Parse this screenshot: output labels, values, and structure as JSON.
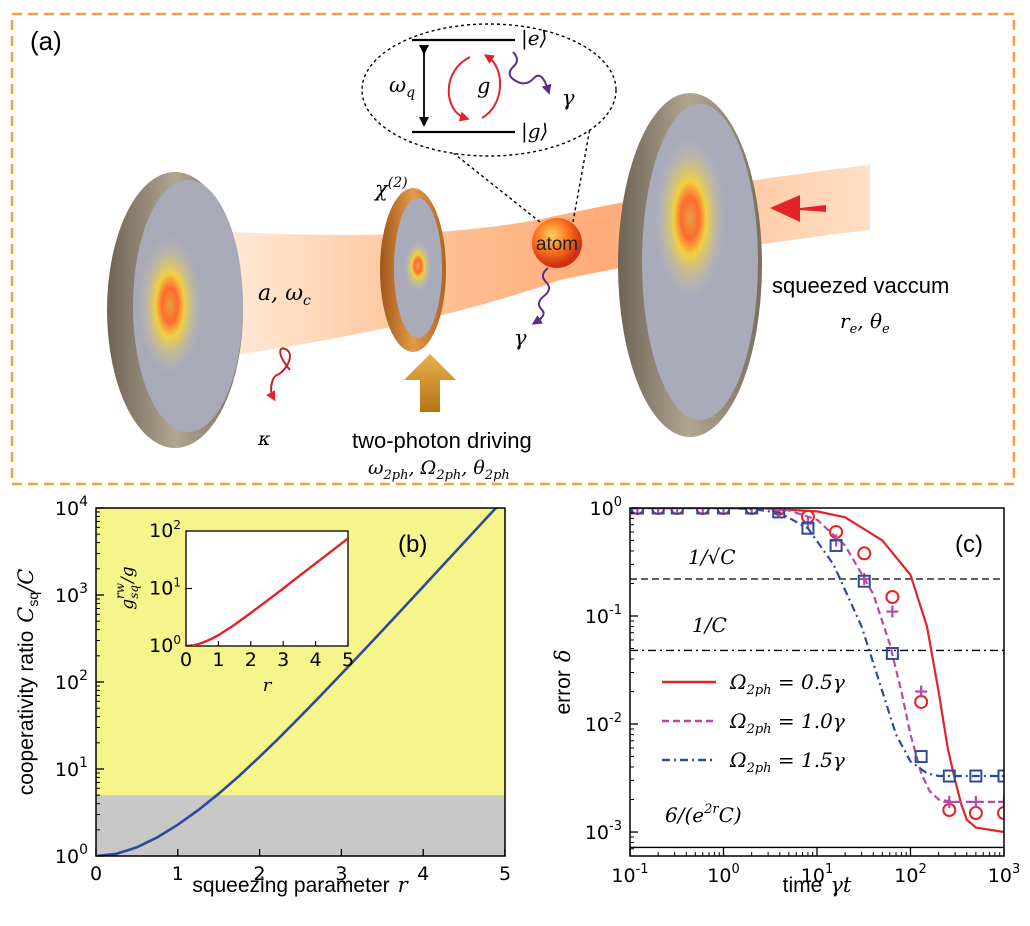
{
  "panel_a": {
    "label": "(a)",
    "chi_label": "χ",
    "chi_sup": "(2)",
    "level_e": "|e⟩",
    "level_g": "|g⟩",
    "omega_q": "ω",
    "omega_q_sub": "q",
    "coupling_g": "g",
    "gamma_top": "γ",
    "gamma_bottom": "γ",
    "atom": "atom",
    "cavity_mode": "a, ω",
    "cavity_mode_sub": "c",
    "kappa": "κ",
    "squeezed_label": "squeezed vaccum",
    "squeezed_params": "r",
    "squeezed_params_sub1": "e",
    "squeezed_params_mid": ", θ",
    "squeezed_params_sub2": "e",
    "driving_label": "two-photon driving",
    "driving_params": "ω",
    "driving_params_sub1": "2ph",
    "driving_params_mid1": ", Ω",
    "driving_params_sub2": "2ph",
    "driving_params_mid2": ", θ",
    "driving_params_sub3": "2ph"
  },
  "chart_data": [
    {
      "type": "line",
      "label": "(b)",
      "xlabel": "squeezing parameter",
      "xlabel_var": "r",
      "ylabel": "cooperativity ratio",
      "ylabel_var": "C",
      "ylabel_sub": "sq",
      "ylabel_tail": "/C",
      "xlim": [
        0,
        5
      ],
      "ylim": [
        1,
        10000
      ],
      "yscale": "log",
      "xticks": [
        "0",
        "1",
        "2",
        "3",
        "4",
        "5"
      ],
      "yticks": [
        {
          "base": "10",
          "exp": "0"
        },
        {
          "base": "10",
          "exp": "1"
        },
        {
          "base": "10",
          "exp": "2"
        },
        {
          "base": "10",
          "exp": "3"
        },
        {
          "base": "10",
          "exp": "4"
        }
      ],
      "regions": [
        {
          "color": "#f5f58c",
          "ymin": 5,
          "ymax": 10000
        },
        {
          "color": "#c8c8c8",
          "ymin": 1,
          "ymax": 5
        }
      ],
      "series": [
        {
          "color": "#2e4b9b",
          "x": [
            0,
            0.25,
            0.5,
            0.75,
            1,
            1.25,
            1.5,
            1.75,
            2,
            2.25,
            2.5,
            2.75,
            3,
            3.25,
            3.5,
            3.75,
            4,
            4.25,
            4.5,
            4.75,
            5
          ],
          "y": [
            1,
            1.06,
            1.26,
            1.64,
            2.29,
            3.37,
            5.2,
            8.3,
            13.8,
            23.4,
            40.3,
            70.4,
            124,
            219,
            390,
            697,
            1250,
            2240,
            4020,
            7220,
            12980
          ]
        }
      ],
      "inset": {
        "xlabel": "r",
        "ylabel": "g",
        "ylabel_sup": "rw",
        "ylabel_sub": "sq",
        "ylabel_tail": "/g",
        "xlim": [
          0,
          5
        ],
        "ylim": [
          1,
          100
        ],
        "xticks": [
          "0",
          "1",
          "2",
          "3",
          "4",
          "5"
        ],
        "yticks": [
          {
            "base": "10",
            "exp": "0"
          },
          {
            "base": "10",
            "exp": "1"
          },
          {
            "base": "10",
            "exp": "2"
          }
        ],
        "series": [
          {
            "color": "#e0242a",
            "x": [
              0,
              0.25,
              0.5,
              0.75,
              1,
              1.5,
              2,
              2.5,
              3,
              3.5,
              4,
              4.5,
              5
            ],
            "y": [
              1,
              1.03,
              1.13,
              1.3,
              1.54,
              2.35,
              3.76,
              6.1,
              10.0,
              16.6,
              27.3,
              45.0,
              74.2
            ]
          }
        ]
      }
    },
    {
      "type": "line",
      "label": "(c)",
      "xlabel": "time",
      "xlabel_var": "γt",
      "ylabel": "error",
      "ylabel_var": "δ",
      "xscale": "log",
      "yscale": "log",
      "xlim": [
        0.1,
        1000
      ],
      "ylim": [
        0.0006,
        1
      ],
      "xticks": [
        {
          "base": "10",
          "exp": "-1"
        },
        {
          "base": "10",
          "exp": "0"
        },
        {
          "base": "10",
          "exp": "1"
        },
        {
          "base": "10",
          "exp": "2"
        },
        {
          "base": "10",
          "exp": "3"
        }
      ],
      "yticks": [
        {
          "base": "10",
          "exp": "-3"
        },
        {
          "base": "10",
          "exp": "-2"
        },
        {
          "base": "10",
          "exp": "-1"
        },
        {
          "base": "10",
          "exp": "0"
        }
      ],
      "reference_lines": [
        {
          "label": "1/√C",
          "y": 0.22,
          "style": "dashed"
        },
        {
          "label": "1/C",
          "y": 0.048,
          "style": "dashdot"
        },
        {
          "label": "6/(e",
          "label_sup": "2r",
          "label_tail": "C)",
          "y": 0.00072,
          "style": "solid"
        }
      ],
      "series": [
        {
          "name": "Ω",
          "name_sub": "2ph",
          "name_tail": " = 0.5γ",
          "color": "#e0242a",
          "style": "solid",
          "marker": "circle",
          "x": [
            0.1,
            1,
            3,
            10,
            20,
            50,
            100,
            150,
            200,
            250,
            300,
            350,
            400,
            500,
            1000
          ],
          "y": [
            1,
            1,
            0.99,
            0.93,
            0.82,
            0.5,
            0.24,
            0.08,
            0.02,
            0.006,
            0.003,
            0.0018,
            0.0013,
            0.0011,
            0.001
          ],
          "mx": [
            0.12,
            0.2,
            0.32,
            0.6,
            1.0,
            2.0,
            3.9,
            8.0,
            16,
            32,
            64,
            130,
            260,
            500,
            1000
          ],
          "my": [
            1,
            1,
            1,
            1,
            1,
            1,
            0.98,
            0.83,
            0.6,
            0.38,
            0.15,
            0.016,
            0.0016,
            0.0015,
            0.0015
          ]
        },
        {
          "name": "Ω",
          "name_sub": "2ph",
          "name_tail": " = 1.0γ",
          "color": "#b44aa5",
          "style": "dashed",
          "marker": "plus",
          "x": [
            0.1,
            1,
            3,
            5,
            10,
            20,
            40,
            60,
            80,
            100,
            130,
            160,
            200,
            300,
            1000
          ],
          "y": [
            1,
            1,
            0.99,
            0.95,
            0.78,
            0.45,
            0.16,
            0.055,
            0.02,
            0.008,
            0.0035,
            0.0024,
            0.002,
            0.0019,
            0.0019
          ],
          "mx": [
            0.12,
            0.2,
            0.32,
            0.6,
            1.0,
            2.0,
            3.9,
            8.0,
            16,
            32,
            64,
            130,
            260,
            500,
            1000
          ],
          "my": [
            1,
            1,
            1,
            1,
            1,
            1,
            0.95,
            0.72,
            0.5,
            0.22,
            0.11,
            0.02,
            0.0019,
            0.0019,
            0.0019
          ]
        },
        {
          "name": "Ω",
          "name_sub": "2ph",
          "name_tail": " = 1.5γ",
          "color": "#2e4b9b",
          "style": "dashdot",
          "marker": "square",
          "x": [
            0.1,
            1,
            2,
            4,
            8,
            15,
            30,
            50,
            70,
            100,
            150,
            200,
            300,
            1000
          ],
          "y": [
            1,
            1,
            0.98,
            0.9,
            0.65,
            0.3,
            0.08,
            0.02,
            0.008,
            0.0045,
            0.0035,
            0.0033,
            0.0033,
            0.0033
          ],
          "mx": [
            0.12,
            0.2,
            0.32,
            0.6,
            1.0,
            2.0,
            3.9,
            8.0,
            16,
            32,
            64,
            130,
            260,
            500,
            1000
          ],
          "my": [
            1,
            1,
            1,
            1,
            1,
            1,
            0.92,
            0.65,
            0.45,
            0.21,
            0.045,
            0.005,
            0.0033,
            0.0033,
            0.0033
          ]
        }
      ]
    }
  ]
}
